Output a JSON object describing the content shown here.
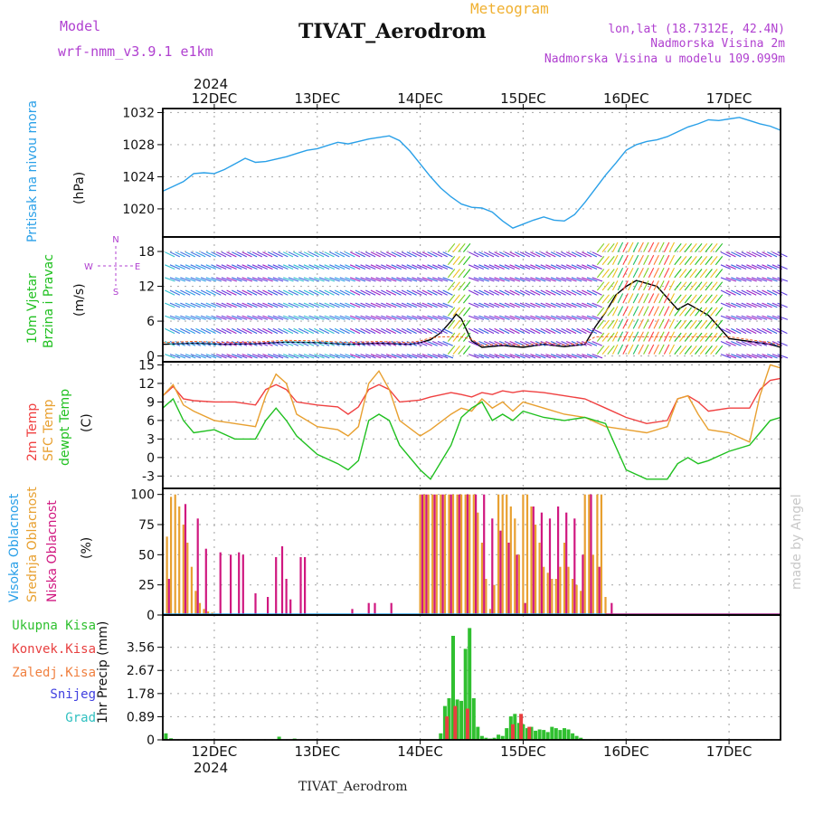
{
  "header": {
    "model_label": "Model",
    "model_name": "wrf-nmm_v3.9.1 e1km",
    "title": "TIVAT_Aerodrom",
    "subtitle": "Meteogram",
    "location": "lon,lat (18.7312E, 42.4N)",
    "elevation": "Nadmorska Visina 2m",
    "model_elevation": "Nadmorska Visina u modelu 109.099m",
    "credit": "made by Angel",
    "bottom_title": "TIVAT_Aerodrom",
    "year_top": "2024",
    "year_bottom": "2024"
  },
  "colors": {
    "pressure": "#2aa0e8",
    "temp2m": "#f04040",
    "sfc_temp": "#e8a030",
    "dewpt": "#20c020",
    "high_cloud": "#2aa0e8",
    "mid_cloud": "#e8a030",
    "low_cloud": "#d01880",
    "total_precip": "#30c030",
    "conv_precip": "#e84040",
    "frozen_precip": "#f08040",
    "snow": "#4040e0",
    "graupel": "#30c0c0",
    "panel_label_purple": "#b040d0"
  },
  "chart_data": [
    {
      "type": "line",
      "id": "pressure",
      "ylabel": [
        "Pritisak na nivou mora",
        "(hPa)"
      ],
      "ylim": [
        1016.5,
        1032.5
      ],
      "yticks": [
        1020,
        1024,
        1028,
        1032
      ],
      "xlim": [
        11.5,
        17.5
      ],
      "x_tick_labels": [
        "12DEC",
        "13DEC",
        "14DEC",
        "15DEC",
        "16DEC",
        "17DEC"
      ],
      "x_tick_values": [
        12,
        13,
        14,
        15,
        16,
        17
      ],
      "grid": true,
      "series": [
        {
          "x": [
            11.5,
            11.6,
            11.7,
            11.8,
            11.9,
            12.0,
            12.1,
            12.2,
            12.3,
            12.4,
            12.5,
            12.6,
            12.7,
            12.8,
            12.9,
            13.0,
            13.1,
            13.2,
            13.3,
            13.4,
            13.5,
            13.6,
            13.7,
            13.8,
            13.9,
            14.0,
            14.1,
            14.2,
            14.3,
            14.4,
            14.5,
            14.6,
            14.7,
            14.8,
            14.9,
            15.0,
            15.1,
            15.2,
            15.3,
            15.4,
            15.5,
            15.6,
            15.7,
            15.8,
            15.9,
            16.0,
            16.1,
            16.2,
            16.3,
            16.4,
            16.5,
            16.6,
            16.7,
            16.8,
            16.9,
            17.0,
            17.1,
            17.2,
            17.3,
            17.4,
            17.5
          ],
          "y": [
            1022.2,
            1022.8,
            1023.4,
            1024.4,
            1024.5,
            1024.4,
            1024.9,
            1025.6,
            1026.3,
            1025.8,
            1025.9,
            1026.2,
            1026.5,
            1026.9,
            1027.3,
            1027.5,
            1027.9,
            1028.3,
            1028.1,
            1028.4,
            1028.7,
            1028.9,
            1029.1,
            1028.5,
            1027.2,
            1025.6,
            1024.0,
            1022.6,
            1021.5,
            1020.6,
            1020.2,
            1020.1,
            1019.6,
            1018.5,
            1017.6,
            1018.1,
            1018.6,
            1019.0,
            1018.6,
            1018.5,
            1019.3,
            1020.8,
            1022.5,
            1024.2,
            1025.7,
            1027.3,
            1028.0,
            1028.4,
            1028.6,
            1029.0,
            1029.6,
            1030.2,
            1030.6,
            1031.1,
            1031.0,
            1031.2,
            1031.4,
            1031.0,
            1030.6,
            1030.3,
            1029.8
          ]
        }
      ]
    },
    {
      "type": "line",
      "id": "wind",
      "ylabel": [
        "10m Vjetar",
        "Brzina i Pravac",
        "(m/s)"
      ],
      "compass": [
        "N",
        "E",
        "S",
        "W"
      ],
      "ylim": [
        -1,
        20.5
      ],
      "yticks": [
        0,
        6,
        12,
        18
      ],
      "xlim": [
        11.5,
        17.5
      ],
      "grid": true,
      "series": [
        {
          "name": "speed",
          "x": [
            11.5,
            11.8,
            12.1,
            12.4,
            12.7,
            13.0,
            13.3,
            13.6,
            13.9,
            14.0,
            14.1,
            14.2,
            14.3,
            14.35,
            14.4,
            14.5,
            14.6,
            14.8,
            15.0,
            15.2,
            15.4,
            15.6,
            15.7,
            15.8,
            15.9,
            16.0,
            16.1,
            16.2,
            16.3,
            16.4,
            16.5,
            16.6,
            16.7,
            16.8,
            17.0,
            17.2,
            17.4,
            17.5
          ],
          "y": [
            2.0,
            2.2,
            2.0,
            2.1,
            2.4,
            2.3,
            2.0,
            2.2,
            2.0,
            2.3,
            2.8,
            4.0,
            6.0,
            7.2,
            6.4,
            2.6,
            1.5,
            1.8,
            1.5,
            2.0,
            1.6,
            2.0,
            5.0,
            7.5,
            10.5,
            12.0,
            13.0,
            12.5,
            12.0,
            10.0,
            8.0,
            9.0,
            8.0,
            7.0,
            3.0,
            2.5,
            2.0,
            1.5
          ]
        }
      ]
    },
    {
      "type": "line",
      "id": "temperature",
      "ylabel": [
        "2m Temp",
        "SFC Temp",
        "dewpt Temp",
        "(C)"
      ],
      "ylim": [
        -5,
        15.5
      ],
      "yticks": [
        -3,
        0,
        3,
        6,
        9,
        12,
        15
      ],
      "xlim": [
        11.5,
        17.5
      ],
      "grid": true,
      "series": [
        {
          "name": "2m Temp",
          "x": [
            11.5,
            11.6,
            11.7,
            11.8,
            12.0,
            12.2,
            12.4,
            12.5,
            12.6,
            12.7,
            12.8,
            13.0,
            13.2,
            13.3,
            13.4,
            13.5,
            13.6,
            13.7,
            13.8,
            14.0,
            14.1,
            14.3,
            14.4,
            14.5,
            14.6,
            14.7,
            14.8,
            14.9,
            15.0,
            15.2,
            15.4,
            15.6,
            15.8,
            16.0,
            16.2,
            16.4,
            16.5,
            16.6,
            16.7,
            16.8,
            17.0,
            17.2,
            17.3,
            17.4,
            17.5
          ],
          "y": [
            10,
            11.5,
            9.5,
            9.2,
            9.0,
            9.0,
            8.5,
            11.0,
            11.8,
            11.0,
            9.0,
            8.5,
            8.2,
            7.0,
            8.2,
            11.0,
            11.8,
            11.0,
            9.0,
            9.3,
            9.8,
            10.5,
            10.2,
            9.8,
            10.5,
            10.2,
            10.8,
            10.5,
            10.8,
            10.5,
            10.0,
            9.5,
            8.0,
            6.5,
            5.5,
            6.0,
            9.5,
            10.0,
            9.0,
            7.5,
            8.0,
            8.0,
            11.0,
            12.5,
            12.8
          ]
        },
        {
          "name": "SFC Temp",
          "x": [
            11.5,
            11.6,
            11.7,
            11.8,
            12.0,
            12.2,
            12.4,
            12.5,
            12.6,
            12.7,
            12.8,
            13.0,
            13.2,
            13.3,
            13.4,
            13.5,
            13.6,
            13.7,
            13.8,
            14.0,
            14.1,
            14.3,
            14.4,
            14.5,
            14.6,
            14.7,
            14.8,
            14.9,
            15.0,
            15.2,
            15.4,
            15.6,
            15.8,
            16.0,
            16.2,
            16.4,
            16.5,
            16.6,
            16.7,
            16.8,
            17.0,
            17.2,
            17.3,
            17.4,
            17.5
          ],
          "y": [
            10,
            11.8,
            8.5,
            7.5,
            6.0,
            5.5,
            5.0,
            10.0,
            13.5,
            12.0,
            7.0,
            5.0,
            4.5,
            3.5,
            5.0,
            12.0,
            14.0,
            11.0,
            6.0,
            3.5,
            4.5,
            7.0,
            8.0,
            7.5,
            9.5,
            8.0,
            9.0,
            7.5,
            9.0,
            8.0,
            7.0,
            6.5,
            5.0,
            4.5,
            4.0,
            5.0,
            9.5,
            10.0,
            7.0,
            4.5,
            4.0,
            2.5,
            10.0,
            15.0,
            14.5
          ]
        },
        {
          "name": "dewpt Temp",
          "x": [
            11.5,
            11.6,
            11.7,
            11.8,
            12.0,
            12.2,
            12.4,
            12.5,
            12.6,
            12.7,
            12.8,
            13.0,
            13.2,
            13.3,
            13.4,
            13.5,
            13.6,
            13.7,
            13.8,
            14.0,
            14.1,
            14.3,
            14.4,
            14.5,
            14.6,
            14.7,
            14.8,
            14.9,
            15.0,
            15.2,
            15.4,
            15.6,
            15.8,
            16.0,
            16.2,
            16.4,
            16.5,
            16.6,
            16.7,
            16.8,
            17.0,
            17.2,
            17.3,
            17.4,
            17.5
          ],
          "y": [
            8,
            9.5,
            6.0,
            4.0,
            4.5,
            3.0,
            3.0,
            6.0,
            8.0,
            6.0,
            3.5,
            0.5,
            -1.0,
            -2.0,
            -0.5,
            6.0,
            7.0,
            6.0,
            2.0,
            -2.0,
            -3.5,
            2.0,
            6.5,
            8.0,
            9.0,
            6.0,
            7.0,
            6.0,
            7.5,
            6.5,
            6.0,
            6.5,
            5.5,
            -2.0,
            -3.5,
            -3.5,
            -1.0,
            0.0,
            -1.0,
            -0.5,
            1.0,
            2.0,
            4.0,
            6.0,
            6.5
          ]
        }
      ]
    },
    {
      "type": "bar",
      "id": "cloud",
      "ylabel": [
        "Visoka Oblacnost",
        "Srednja Oblacnost",
        "Niska Oblacnost",
        "(%)"
      ],
      "ylim": [
        0,
        105
      ],
      "yticks": [
        0,
        25,
        50,
        75,
        100
      ],
      "xlim": [
        11.5,
        17.5
      ],
      "grid": true,
      "series": [
        {
          "name": "Srednja Oblacnost",
          "x": [
            11.54,
            11.58,
            11.62,
            11.66,
            11.7,
            11.74,
            11.78,
            11.82,
            11.86,
            11.9,
            11.94,
            11.98,
            14.0,
            14.04,
            14.08,
            14.12,
            14.16,
            14.2,
            14.24,
            14.28,
            14.32,
            14.36,
            14.4,
            14.44,
            14.48,
            14.52,
            14.56,
            14.6,
            14.64,
            14.68,
            14.72,
            14.76,
            14.8,
            14.84,
            14.88,
            14.92,
            14.96,
            15.0,
            15.04,
            15.08,
            15.12,
            15.16,
            15.2,
            15.24,
            15.28,
            15.32,
            15.36,
            15.4,
            15.44,
            15.48,
            15.52,
            15.56,
            15.6,
            15.64,
            15.68,
            15.72,
            15.76,
            15.8
          ],
          "y": [
            65,
            98,
            100,
            90,
            75,
            60,
            40,
            20,
            10,
            5,
            3,
            2,
            100,
            100,
            100,
            100,
            100,
            100,
            100,
            100,
            100,
            100,
            100,
            100,
            100,
            100,
            85,
            60,
            30,
            5,
            25,
            100,
            100,
            100,
            90,
            80,
            50,
            100,
            100,
            90,
            75,
            60,
            40,
            35,
            30,
            30,
            40,
            60,
            40,
            30,
            25,
            20,
            100,
            100,
            50,
            100,
            100,
            15
          ]
        },
        {
          "name": "Niska Oblacnost",
          "x": [
            11.56,
            11.72,
            11.84,
            11.92,
            12.06,
            12.16,
            12.24,
            12.28,
            12.4,
            12.52,
            12.6,
            12.66,
            12.7,
            12.74,
            12.84,
            12.88,
            13.34,
            13.5,
            13.56,
            13.72,
            14.02,
            14.06,
            14.14,
            14.22,
            14.3,
            14.38,
            14.46,
            14.54,
            14.62,
            14.7,
            14.78,
            14.86,
            14.94,
            15.02,
            15.1,
            15.18,
            15.26,
            15.34,
            15.42,
            15.5,
            15.58,
            15.66,
            15.74,
            15.86
          ],
          "y": [
            30,
            92,
            80,
            55,
            52,
            50,
            52,
            50,
            18,
            15,
            48,
            57,
            30,
            13,
            48,
            48,
            5,
            10,
            10,
            10,
            100,
            100,
            100,
            100,
            100,
            100,
            100,
            100,
            100,
            80,
            70,
            60,
            50,
            10,
            90,
            85,
            80,
            90,
            85,
            80,
            50,
            100,
            40,
            10
          ]
        },
        {
          "name": "Visoka Oblacnost",
          "x": [],
          "y": []
        }
      ]
    },
    {
      "type": "bar",
      "id": "precip",
      "ylabel": [
        "Ukupna Kisa",
        "Konvek.Kisa",
        "Zaledj.Kisa",
        "Snijeg",
        "Grad",
        "1hr Precip (mm)"
      ],
      "ylim": [
        0,
        4.8
      ],
      "yticks": [
        0,
        0.89,
        1.78,
        2.67,
        3.56
      ],
      "xlim": [
        11.5,
        17.5
      ],
      "grid": true,
      "series": [
        {
          "name": "Ukupna Kisa",
          "x": [
            11.53,
            11.58,
            12.63,
            12.78,
            13.3,
            14.2,
            14.24,
            14.28,
            14.32,
            14.36,
            14.4,
            14.44,
            14.48,
            14.52,
            14.56,
            14.6,
            14.64,
            14.68,
            14.72,
            14.76,
            14.8,
            14.84,
            14.88,
            14.92,
            14.96,
            15.0,
            15.04,
            15.08,
            15.12,
            15.16,
            15.2,
            15.24,
            15.28,
            15.32,
            15.36,
            15.4,
            15.44,
            15.48,
            15.52,
            15.56
          ],
          "y": [
            0.25,
            0.06,
            0.12,
            0.05,
            0.02,
            0.25,
            1.3,
            1.6,
            4.0,
            1.55,
            1.5,
            3.5,
            4.3,
            1.6,
            0.5,
            0.15,
            0.08,
            0.05,
            0.08,
            0.2,
            0.15,
            0.45,
            0.9,
            1.0,
            0.65,
            0.6,
            0.45,
            0.5,
            0.35,
            0.4,
            0.38,
            0.3,
            0.5,
            0.45,
            0.38,
            0.45,
            0.4,
            0.25,
            0.15,
            0.08
          ]
        },
        {
          "name": "Konvek.Kisa",
          "x": [
            14.26,
            14.34,
            14.46,
            14.9,
            14.98,
            15.06
          ],
          "y": [
            0.9,
            1.3,
            1.2,
            0.6,
            1.0,
            0.5
          ]
        },
        {
          "name": "Zaledj.Kisa",
          "x": [],
          "y": []
        },
        {
          "name": "Snijeg",
          "x": [],
          "y": []
        },
        {
          "name": "Grad",
          "x": [],
          "y": []
        }
      ]
    }
  ]
}
